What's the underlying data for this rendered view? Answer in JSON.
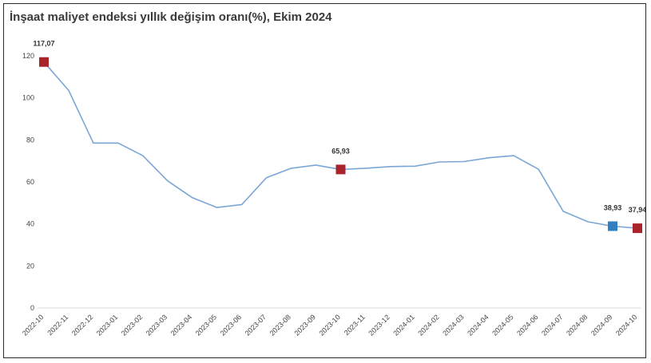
{
  "chart_data": {
    "type": "line",
    "title": "İnşaat maliyet endeksi yıllık değişim oranı(%), Ekim 2024",
    "xlabel": "",
    "ylabel": "",
    "ylim": [
      0,
      120
    ],
    "yticks": [
      0,
      20,
      40,
      60,
      80,
      100,
      120
    ],
    "grid": false,
    "categories": [
      "2022-10",
      "2022-11",
      "2022-12",
      "2023-01",
      "2023-02",
      "2023-03",
      "2023-04",
      "2023-05",
      "2023-06",
      "2023-07",
      "2023-08",
      "2023-09",
      "2023-10",
      "2023-11",
      "2023-12",
      "2024-01",
      "2024-02",
      "2024-03",
      "2024-04",
      "2024-05",
      "2024-06",
      "2024-07",
      "2024-08",
      "2024-09",
      "2024-10"
    ],
    "series": [
      {
        "values": [
          117.07,
          103.5,
          78.5,
          78.5,
          72.5,
          60.5,
          52.5,
          47.8,
          49.2,
          62.0,
          66.5,
          68.0,
          65.93,
          66.5,
          67.3,
          67.5,
          69.5,
          69.7,
          71.5,
          72.5,
          66.0,
          46.0,
          41.0,
          38.93,
          37.94
        ],
        "color": "#7aa6d6"
      }
    ],
    "markers": [
      {
        "index": 0,
        "label": "117,07",
        "color": "#a8232a"
      },
      {
        "index": 12,
        "label": "65,93",
        "color": "#a8232a"
      },
      {
        "index": 23,
        "label": "38,93",
        "color": "#2f7fc1"
      },
      {
        "index": 24,
        "label": "37,94",
        "color": "#a8232a"
      }
    ]
  }
}
